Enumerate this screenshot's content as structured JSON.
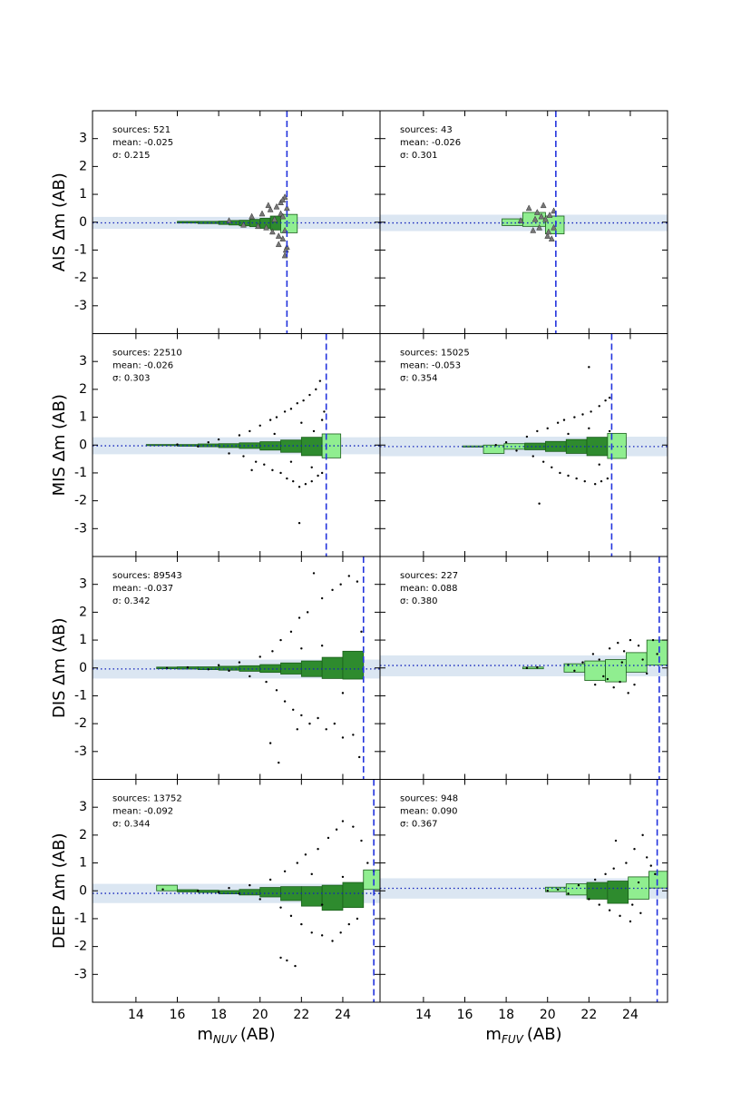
{
  "chart_data": [
    {
      "type": "scatter",
      "ylabel": "AIS Δm (AB)",
      "annotations": [
        "sources: 521",
        "mean: -0.025",
        "σ: 0.215"
      ],
      "xlim": [
        11.9,
        25.8
      ],
      "ylim": [
        -4,
        4
      ],
      "xticks": [
        14,
        16,
        18,
        20,
        22,
        24
      ],
      "yticks": [
        -3,
        -2,
        -1,
        0,
        1,
        2,
        3
      ],
      "show_xticklabels": false,
      "show_yticklabels": true,
      "limit": 21.3,
      "limit_color": "#2233dd",
      "band": [
        -0.24,
        0.19
      ],
      "band_color": "#dbe6f2",
      "mean_line": -0.025,
      "mean_color": "#1122bb",
      "bin_lo": [
        16,
        17,
        18,
        18.5,
        19,
        19.5,
        20,
        20.5,
        21
      ],
      "bin_hi": [
        17,
        18,
        18.5,
        19,
        19.5,
        20,
        20.5,
        21,
        21.8
      ],
      "bin_means": [
        0,
        -0.01,
        -0.02,
        -0.02,
        -0.03,
        -0.03,
        -0.04,
        -0.03,
        -0.05
      ],
      "bin_spreads": [
        0.03,
        0.04,
        0.06,
        0.08,
        0.1,
        0.13,
        0.18,
        0.25,
        0.33
      ],
      "bin_colors": [
        "#2e8b2e",
        "#2e8b2e",
        "#2e8b2e",
        "#2e8b2e",
        "#2e8b2e",
        "#2e8b2e",
        "#2e8b2e",
        "#2e8b2e",
        "#90ee90"
      ],
      "marker": "triangle",
      "point_color": "#777777",
      "points": {
        "x": [
          18.5,
          19.2,
          19.6,
          19.9,
          20.1,
          20.3,
          20.5,
          20.6,
          20.7,
          20.8,
          20.9,
          21.0,
          21.0,
          21.1,
          21.1,
          21.2,
          21.2,
          21.2,
          21.3,
          21.3,
          20.4,
          20.9,
          21.1,
          21.25
        ],
        "y": [
          0.05,
          -0.1,
          0.2,
          -0.15,
          0.3,
          -0.2,
          0.45,
          -0.35,
          0.1,
          0.55,
          -0.5,
          0.3,
          0.7,
          -0.6,
          0.2,
          0.9,
          -0.3,
          -1.2,
          0.5,
          -0.9,
          0.6,
          -0.8,
          0.8,
          -1.0
        ]
      }
    },
    {
      "type": "scatter",
      "annotations": [
        "sources: 43",
        "mean: -0.026",
        "σ: 0.301"
      ],
      "xlim": [
        11.9,
        25.8
      ],
      "ylim": [
        -4,
        4
      ],
      "xticks": [
        14,
        16,
        18,
        20,
        22,
        24
      ],
      "yticks": [
        -3,
        -2,
        -1,
        0,
        1,
        2,
        3
      ],
      "show_xticklabels": false,
      "show_yticklabels": false,
      "limit": 20.4,
      "limit_color": "#2233dd",
      "band": [
        -0.32,
        0.27
      ],
      "band_color": "#dbe6f2",
      "mean_line": -0.026,
      "mean_color": "#1122bb",
      "bin_lo": [
        17.8,
        18.8,
        19.9
      ],
      "bin_hi": [
        18.8,
        19.9,
        20.8
      ],
      "bin_means": [
        0,
        0.1,
        -0.1
      ],
      "bin_spreads": [
        0.12,
        0.25,
        0.32
      ],
      "bin_colors": [
        "#90ee90",
        "#90ee90",
        "#90ee90"
      ],
      "marker": "triangle",
      "point_color": "#777777",
      "points": {
        "x": [
          18.7,
          19.1,
          19.3,
          19.5,
          19.6,
          19.8,
          19.9,
          20.0,
          20.1,
          20.2,
          20.3,
          20.3,
          19.4,
          20.05,
          19.7
        ],
        "y": [
          0.05,
          0.5,
          -0.3,
          0.35,
          -0.2,
          0.6,
          0.1,
          -0.5,
          0.25,
          -0.6,
          0.4,
          -0.2,
          0.1,
          -0.35,
          0.2
        ]
      }
    },
    {
      "type": "scatter",
      "ylabel": "MIS Δm (AB)",
      "annotations": [
        "sources: 22510",
        "mean: -0.026",
        "σ: 0.303"
      ],
      "xlim": [
        11.9,
        25.8
      ],
      "ylim": [
        -4,
        4
      ],
      "xticks": [
        14,
        16,
        18,
        20,
        22,
        24
      ],
      "yticks": [
        -3,
        -2,
        -1,
        0,
        1,
        2,
        3
      ],
      "show_xticklabels": false,
      "show_yticklabels": true,
      "limit": 23.2,
      "limit_color": "#2233dd",
      "band": [
        -0.33,
        0.28
      ],
      "band_color": "#dbe6f2",
      "mean_line": -0.026,
      "mean_color": "#1122bb",
      "bin_lo": [
        14.5,
        16,
        17,
        18,
        19,
        20,
        21,
        22,
        23
      ],
      "bin_hi": [
        16,
        17,
        18,
        19,
        20,
        21,
        22,
        23,
        23.9
      ],
      "bin_means": [
        0,
        -0.01,
        -0.01,
        -0.02,
        -0.02,
        -0.03,
        -0.04,
        -0.05,
        -0.03
      ],
      "bin_spreads": [
        0.02,
        0.03,
        0.05,
        0.07,
        0.1,
        0.15,
        0.22,
        0.33,
        0.43
      ],
      "bin_colors": [
        "#2e8b2e",
        "#2e8b2e",
        "#2e8b2e",
        "#2e8b2e",
        "#2e8b2e",
        "#2e8b2e",
        "#2e8b2e",
        "#2e8b2e",
        "#90ee90"
      ],
      "marker": "dot",
      "point_color": "#000000",
      "points": {
        "x": [
          16,
          17,
          17.5,
          18,
          18.5,
          19,
          19.2,
          19.5,
          19.8,
          20,
          20.2,
          20.5,
          20.6,
          20.8,
          21,
          21.2,
          21.3,
          21.5,
          21.6,
          21.8,
          21.9,
          22.1,
          22.2,
          22.4,
          22.5,
          22.7,
          22.8,
          22.9,
          23.0,
          23.1,
          21.9,
          19.6,
          22,
          22.5,
          23,
          22.6,
          21.5,
          20.7
        ],
        "y": [
          0.02,
          -0.05,
          0.1,
          0.2,
          -0.3,
          0.35,
          -0.4,
          0.5,
          -0.6,
          0.7,
          -0.7,
          0.9,
          -0.9,
          1.0,
          -1.0,
          1.2,
          -1.2,
          1.3,
          -1.3,
          1.5,
          -1.5,
          1.6,
          -1.4,
          1.8,
          -1.3,
          2.0,
          -1.1,
          2.3,
          -1.0,
          1.2,
          -2.8,
          -0.9,
          0.8,
          -0.8,
          0.9,
          0.5,
          -0.6,
          0.4
        ]
      }
    },
    {
      "type": "scatter",
      "annotations": [
        "sources: 15025",
        "mean: -0.053",
        "σ: 0.354"
      ],
      "xlim": [
        11.9,
        25.8
      ],
      "ylim": [
        -4,
        4
      ],
      "xticks": [
        14,
        16,
        18,
        20,
        22,
        24
      ],
      "yticks": [
        -3,
        -2,
        -1,
        0,
        1,
        2,
        3
      ],
      "show_xticklabels": false,
      "show_yticklabels": false,
      "limit": 23.1,
      "limit_color": "#2233dd",
      "band": [
        -0.4,
        0.3
      ],
      "band_color": "#dbe6f2",
      "mean_line": -0.053,
      "mean_color": "#1122bb",
      "bin_lo": [
        15.9,
        16.9,
        17.9,
        18.9,
        19.9,
        20.9,
        21.9,
        22.9
      ],
      "bin_hi": [
        16.9,
        17.9,
        18.9,
        19.9,
        20.9,
        21.9,
        22.9,
        23.8
      ],
      "bin_means": [
        -0.05,
        -0.15,
        -0.05,
        -0.05,
        -0.05,
        -0.05,
        -0.05,
        -0.03
      ],
      "bin_spreads": [
        0.02,
        0.15,
        0.1,
        0.12,
        0.18,
        0.25,
        0.33,
        0.45
      ],
      "bin_colors": [
        "#90ee90",
        "#90ee90",
        "#90ee90",
        "#2e8b2e",
        "#2e8b2e",
        "#2e8b2e",
        "#2e8b2e",
        "#90ee90"
      ],
      "marker": "dot",
      "point_color": "#000000",
      "points": {
        "x": [
          17.5,
          18,
          18.5,
          19,
          19.3,
          19.5,
          19.8,
          20,
          20.2,
          20.5,
          20.6,
          20.8,
          21,
          21.3,
          21.4,
          21.7,
          21.8,
          22.0,
          22.1,
          22.3,
          22.5,
          22.6,
          22.8,
          22.9,
          23.0,
          19.6,
          22,
          22.5,
          21,
          23
        ],
        "y": [
          0.0,
          0.1,
          -0.2,
          0.3,
          -0.4,
          0.5,
          -0.6,
          0.6,
          -0.8,
          0.8,
          -1.0,
          0.9,
          -1.1,
          1.0,
          -1.2,
          1.1,
          -1.3,
          2.8,
          1.2,
          -1.4,
          1.4,
          -1.3,
          1.6,
          -1.2,
          1.7,
          -2.1,
          0.6,
          -0.7,
          0.4,
          0.5
        ]
      }
    },
    {
      "type": "scatter",
      "ylabel": "DIS Δm (AB)",
      "annotations": [
        "sources: 89543",
        "mean: -0.037",
        "σ: 0.342"
      ],
      "xlim": [
        11.9,
        25.8
      ],
      "ylim": [
        -4,
        4
      ],
      "xticks": [
        14,
        16,
        18,
        20,
        22,
        24
      ],
      "yticks": [
        -3,
        -2,
        -1,
        0,
        1,
        2,
        3
      ],
      "show_xticklabels": false,
      "show_yticklabels": true,
      "limit": 25.0,
      "limit_color": "#2233dd",
      "band": [
        -0.38,
        0.3
      ],
      "band_color": "#dbe6f2",
      "mean_line": -0.037,
      "mean_color": "#1122bb",
      "bin_lo": [
        15,
        16,
        17,
        18,
        19,
        20,
        21,
        22,
        23,
        24
      ],
      "bin_hi": [
        16,
        17,
        18,
        19,
        20,
        21,
        22,
        23,
        24,
        25
      ],
      "bin_means": [
        0,
        0,
        -0.01,
        -0.01,
        -0.02,
        -0.02,
        -0.02,
        -0.03,
        0,
        0.1
      ],
      "bin_spreads": [
        0.03,
        0.04,
        0.05,
        0.07,
        0.1,
        0.14,
        0.2,
        0.28,
        0.38,
        0.5
      ],
      "bin_colors": [
        "#2e8b2e",
        "#2e8b2e",
        "#2e8b2e",
        "#2e8b2e",
        "#2e8b2e",
        "#2e8b2e",
        "#2e8b2e",
        "#2e8b2e",
        "#2e8b2e",
        "#2e8b2e"
      ],
      "marker": "dot",
      "point_color": "#000000",
      "points": {
        "x": [
          15.5,
          16.5,
          17.5,
          18,
          18.5,
          19,
          19.5,
          20,
          20.3,
          20.6,
          20.8,
          21,
          21.2,
          21.5,
          21.6,
          21.9,
          22,
          22.3,
          22.4,
          22.6,
          22.8,
          23,
          23.2,
          23.5,
          23.6,
          23.9,
          24,
          24.3,
          24.5,
          24.7,
          24.8,
          20.5,
          20.9,
          21.8,
          24.9,
          23,
          24,
          22
        ],
        "y": [
          0,
          0.02,
          -0.05,
          0.1,
          -0.1,
          0.2,
          -0.3,
          0.4,
          -0.5,
          0.6,
          -0.8,
          1.0,
          -1.2,
          1.3,
          -1.5,
          1.8,
          -1.7,
          2.0,
          -2.0,
          3.4,
          -1.8,
          2.5,
          -2.2,
          2.8,
          -2.0,
          3.0,
          -2.5,
          3.3,
          -2.4,
          3.1,
          -3.2,
          -2.7,
          -3.4,
          -2.2,
          1.3,
          0.8,
          -0.9,
          0.7
        ]
      }
    },
    {
      "type": "scatter",
      "annotations": [
        "sources: 227",
        "mean: 0.088",
        "σ: 0.380"
      ],
      "xlim": [
        11.9,
        25.8
      ],
      "ylim": [
        -4,
        4
      ],
      "xticks": [
        14,
        16,
        18,
        20,
        22,
        24
      ],
      "yticks": [
        -3,
        -2,
        -1,
        0,
        1,
        2,
        3
      ],
      "show_xticklabels": false,
      "show_yticklabels": false,
      "limit": 25.4,
      "limit_color": "#2233dd",
      "band": [
        -0.3,
        0.45
      ],
      "band_color": "#dbe6f2",
      "mean_line": 0.088,
      "mean_color": "#1122bb",
      "bin_lo": [
        18.8,
        20.8,
        21.8,
        22.8,
        23.8,
        24.8
      ],
      "bin_hi": [
        19.8,
        21.8,
        22.8,
        23.8,
        24.8,
        25.8
      ],
      "bin_means": [
        0,
        0,
        -0.1,
        -0.1,
        0.2,
        0.55
      ],
      "bin_spreads": [
        0.03,
        0.15,
        0.35,
        0.4,
        0.35,
        0.45
      ],
      "bin_colors": [
        "#90ee90",
        "#90ee90",
        "#90ee90",
        "#90ee90",
        "#90ee90",
        "#90ee90"
      ],
      "marker": "dot",
      "point_color": "#000000",
      "points": {
        "x": [
          19,
          19.5,
          21,
          21.3,
          21.7,
          22.2,
          22.3,
          22.5,
          22.7,
          23,
          23.2,
          23.4,
          23.5,
          23.7,
          23.9,
          24,
          24.2,
          24.4,
          24.6,
          24.8,
          25.1,
          25.3,
          22.9,
          23.6
        ],
        "y": [
          0,
          0.02,
          0.1,
          -0.1,
          0.2,
          0.5,
          -0.6,
          0.3,
          -0.3,
          0.7,
          -0.7,
          0.9,
          -0.5,
          0.6,
          -0.9,
          1.0,
          -0.6,
          0.8,
          0.3,
          -0.2,
          1.0,
          0.5,
          -0.4,
          0.2
        ]
      }
    },
    {
      "type": "scatter",
      "ylabel": "DEEP Δm (AB)",
      "annotations": [
        "sources: 13752",
        "mean: -0.092",
        "σ: 0.344"
      ],
      "xlabel": "m",
      "xlabel_sub": "NUV",
      "xlabel_unit": "(AB)",
      "xlim": [
        11.9,
        25.8
      ],
      "ylim": [
        -4,
        4
      ],
      "xticks": [
        14,
        16,
        18,
        20,
        22,
        24
      ],
      "yticks": [
        -3,
        -2,
        -1,
        0,
        1,
        2,
        3
      ],
      "show_xticklabels": true,
      "show_yticklabels": true,
      "limit": 25.5,
      "limit_color": "#2233dd",
      "band": [
        -0.44,
        0.25
      ],
      "band_color": "#dbe6f2",
      "mean_line": -0.092,
      "mean_color": "#1122bb",
      "bin_lo": [
        15,
        16,
        17,
        18,
        19,
        20,
        21,
        22,
        23,
        24,
        25
      ],
      "bin_hi": [
        16,
        17,
        18,
        19,
        20,
        21,
        22,
        23,
        24,
        25,
        25.8
      ],
      "bin_means": [
        0.1,
        0,
        -0.02,
        -0.05,
        -0.05,
        -0.05,
        -0.1,
        -0.2,
        -0.25,
        -0.15,
        0.4
      ],
      "bin_spreads": [
        0.1,
        0.04,
        0.04,
        0.06,
        0.1,
        0.17,
        0.25,
        0.35,
        0.45,
        0.45,
        0.35
      ],
      "bin_colors": [
        "#90ee90",
        "#2e8b2e",
        "#2e8b2e",
        "#2e8b2e",
        "#2e8b2e",
        "#2e8b2e",
        "#2e8b2e",
        "#2e8b2e",
        "#2e8b2e",
        "#2e8b2e",
        "#90ee90"
      ],
      "marker": "dot",
      "point_color": "#000000",
      "points": {
        "x": [
          15.3,
          17,
          18,
          18.5,
          19,
          19.5,
          20,
          20.5,
          21,
          21.2,
          21.5,
          21.8,
          22,
          22.2,
          22.5,
          22.8,
          23,
          23.3,
          23.5,
          23.7,
          23.9,
          24,
          24.3,
          24.5,
          24.7,
          24.9,
          25.2,
          25.5,
          21.3,
          21.7,
          21,
          24,
          23,
          22.5
        ],
        "y": [
          0.05,
          0.0,
          -0.05,
          0.1,
          -0.1,
          0.2,
          -0.3,
          0.4,
          -0.6,
          0.7,
          -0.9,
          1.0,
          -1.2,
          1.3,
          -1.5,
          1.5,
          -1.6,
          1.9,
          -1.8,
          2.2,
          -1.5,
          2.5,
          -1.2,
          2.3,
          -1.0,
          1.8,
          1.0,
          0.7,
          -2.5,
          -2.7,
          -2.4,
          0.5,
          -0.5,
          0.6
        ]
      }
    },
    {
      "type": "scatter",
      "annotations": [
        "sources: 948",
        "mean: 0.090",
        "σ: 0.367"
      ],
      "xlabel": "m",
      "xlabel_sub": "FUV",
      "xlabel_unit": "(AB)",
      "xlim": [
        11.9,
        25.8
      ],
      "ylim": [
        -4,
        4
      ],
      "xticks": [
        14,
        16,
        18,
        20,
        22,
        24
      ],
      "yticks": [
        -3,
        -2,
        -1,
        0,
        1,
        2,
        3
      ],
      "show_xticklabels": true,
      "show_yticklabels": false,
      "limit": 25.3,
      "limit_color": "#2233dd",
      "band": [
        -0.28,
        0.45
      ],
      "band_color": "#dbe6f2",
      "mean_line": 0.09,
      "mean_color": "#1122bb",
      "bin_lo": [
        19.9,
        20.9,
        21.9,
        22.9,
        23.9,
        24.9
      ],
      "bin_hi": [
        20.9,
        21.9,
        22.9,
        23.9,
        24.9,
        25.8
      ],
      "bin_means": [
        0.05,
        0.05,
        0,
        -0.05,
        0.1,
        0.4
      ],
      "bin_spreads": [
        0.08,
        0.2,
        0.3,
        0.4,
        0.4,
        0.3
      ],
      "bin_colors": [
        "#90ee90",
        "#90ee90",
        "#2e8b2e",
        "#2e8b2e",
        "#90ee90",
        "#90ee90"
      ],
      "marker": "dot",
      "point_color": "#000000",
      "points": {
        "x": [
          20,
          20.5,
          21,
          21.5,
          22,
          22.3,
          22.5,
          22.8,
          23,
          23.2,
          23.5,
          23.8,
          24,
          24.2,
          24.5,
          24.6,
          24.8,
          25,
          25.2,
          23.3,
          24.1,
          24.4
        ],
        "y": [
          0,
          0.05,
          -0.1,
          0.2,
          -0.3,
          0.4,
          -0.5,
          0.6,
          -0.7,
          0.8,
          -0.9,
          1.0,
          -1.1,
          1.5,
          -0.8,
          2.0,
          1.2,
          0.9,
          0.6,
          1.8,
          -0.5,
          0.3
        ]
      }
    }
  ]
}
